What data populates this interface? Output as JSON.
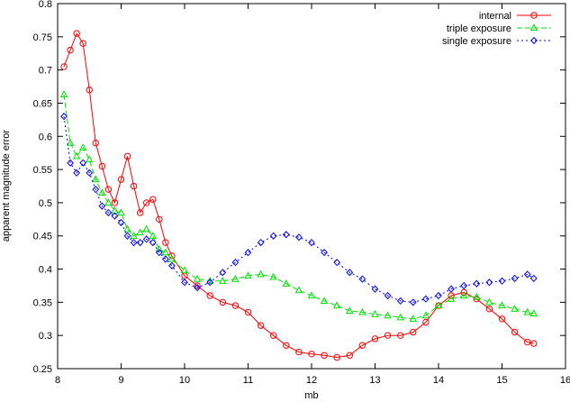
{
  "chart_data": {
    "type": "line",
    "title": "",
    "xlabel": "mb",
    "ylabel": "apparent magnitude error",
    "xlim": [
      8,
      16
    ],
    "ylim": [
      0.25,
      0.8
    ],
    "xticks": [
      8,
      9,
      10,
      11,
      12,
      13,
      14,
      15,
      16
    ],
    "xtick_labels": [
      "8",
      "9",
      "10",
      "11",
      "12",
      "13",
      "14",
      "15",
      "16"
    ],
    "yticks": [
      0.25,
      0.3,
      0.35,
      0.4,
      0.45,
      0.5,
      0.55,
      0.6,
      0.65,
      0.7,
      0.75,
      0.8
    ],
    "ytick_labels": [
      "0.25",
      "0.3",
      "0.35",
      "0.4",
      "0.45",
      "0.5",
      "0.55",
      "0.6",
      "0.65",
      "0.7",
      "0.75",
      "0.8"
    ],
    "grid": false,
    "legend_position": "top-right",
    "series": [
      {
        "name": "internal",
        "color": "#ff0000",
        "marker": "circle",
        "dash": "",
        "x": [
          8.1,
          8.2,
          8.3,
          8.4,
          8.5,
          8.6,
          8.7,
          8.8,
          8.9,
          9.0,
          9.1,
          9.2,
          9.3,
          9.4,
          9.5,
          9.6,
          9.7,
          9.8,
          10.0,
          10.2,
          10.4,
          10.6,
          10.8,
          11.0,
          11.2,
          11.4,
          11.6,
          11.8,
          12.0,
          12.2,
          12.4,
          12.6,
          12.8,
          13.0,
          13.2,
          13.4,
          13.6,
          13.8,
          14.0,
          14.2,
          14.4,
          14.6,
          14.8,
          15.0,
          15.2,
          15.4,
          15.5
        ],
        "y": [
          0.705,
          0.73,
          0.755,
          0.74,
          0.67,
          0.59,
          0.555,
          0.52,
          0.5,
          0.535,
          0.57,
          0.525,
          0.485,
          0.5,
          0.505,
          0.475,
          0.44,
          0.42,
          0.39,
          0.375,
          0.36,
          0.35,
          0.345,
          0.335,
          0.315,
          0.3,
          0.285,
          0.275,
          0.272,
          0.27,
          0.267,
          0.27,
          0.285,
          0.295,
          0.3,
          0.3,
          0.305,
          0.32,
          0.345,
          0.36,
          0.365,
          0.355,
          0.34,
          0.325,
          0.305,
          0.29,
          0.288
        ]
      },
      {
        "name": "triple exposure",
        "color": "#00e000",
        "marker": "triangle",
        "dash": "6,3",
        "x": [
          8.1,
          8.2,
          8.3,
          8.4,
          8.5,
          8.6,
          8.7,
          8.8,
          8.9,
          9.0,
          9.1,
          9.2,
          9.3,
          9.4,
          9.5,
          9.6,
          9.7,
          9.8,
          10.0,
          10.2,
          10.4,
          10.6,
          10.8,
          11.0,
          11.2,
          11.4,
          11.6,
          11.8,
          12.0,
          12.2,
          12.4,
          12.6,
          12.8,
          13.0,
          13.2,
          13.4,
          13.6,
          13.8,
          14.0,
          14.2,
          14.4,
          14.6,
          14.8,
          15.0,
          15.2,
          15.4,
          15.5
        ],
        "y": [
          0.663,
          0.59,
          0.57,
          0.583,
          0.565,
          0.535,
          0.515,
          0.5,
          0.488,
          0.485,
          0.46,
          0.45,
          0.455,
          0.46,
          0.45,
          0.43,
          0.425,
          0.415,
          0.398,
          0.385,
          0.382,
          0.382,
          0.385,
          0.39,
          0.392,
          0.388,
          0.378,
          0.368,
          0.36,
          0.352,
          0.345,
          0.337,
          0.335,
          0.332,
          0.33,
          0.327,
          0.325,
          0.33,
          0.345,
          0.355,
          0.36,
          0.358,
          0.35,
          0.345,
          0.34,
          0.335,
          0.333
        ]
      },
      {
        "name": "single exposure",
        "color": "#0000ff",
        "marker": "diamond",
        "dash": "2,3",
        "x": [
          8.1,
          8.2,
          8.3,
          8.4,
          8.5,
          8.6,
          8.7,
          8.8,
          8.9,
          9.0,
          9.1,
          9.2,
          9.3,
          9.4,
          9.5,
          9.6,
          9.7,
          9.8,
          10.0,
          10.2,
          10.4,
          10.6,
          10.8,
          11.0,
          11.2,
          11.4,
          11.6,
          11.8,
          12.0,
          12.2,
          12.4,
          12.6,
          12.8,
          13.0,
          13.2,
          13.4,
          13.6,
          13.8,
          14.0,
          14.2,
          14.4,
          14.6,
          14.8,
          15.0,
          15.2,
          15.4,
          15.5
        ],
        "y": [
          0.63,
          0.56,
          0.545,
          0.56,
          0.545,
          0.52,
          0.495,
          0.485,
          0.48,
          0.47,
          0.45,
          0.44,
          0.44,
          0.445,
          0.44,
          0.425,
          0.415,
          0.405,
          0.38,
          0.372,
          0.38,
          0.395,
          0.41,
          0.425,
          0.44,
          0.45,
          0.452,
          0.448,
          0.44,
          0.425,
          0.41,
          0.395,
          0.385,
          0.37,
          0.36,
          0.352,
          0.35,
          0.355,
          0.36,
          0.37,
          0.375,
          0.378,
          0.38,
          0.382,
          0.386,
          0.392,
          0.386
        ]
      }
    ]
  }
}
